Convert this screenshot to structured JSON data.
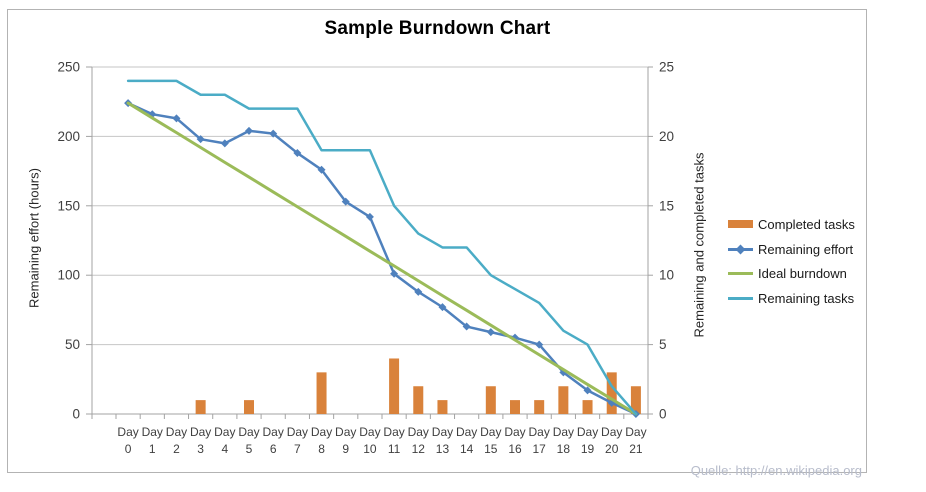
{
  "title": "Sample Burndown Chart",
  "source_note": "Quelle: http://en.wikipedia.org",
  "axes": {
    "left": {
      "title": "Remaining effort (hours)",
      "ticks": [
        0,
        50,
        100,
        150,
        200,
        250
      ]
    },
    "right": {
      "title": "Remaining and completed tasks",
      "ticks": [
        0,
        5,
        10,
        15,
        20,
        25
      ]
    },
    "x": {
      "word": "Day",
      "days": [
        "0",
        "1",
        "2",
        "3",
        "4",
        "5",
        "6",
        "7",
        "8",
        "9",
        "10",
        "11",
        "12",
        "13",
        "14",
        "15",
        "16",
        "17",
        "18",
        "19",
        "20",
        "21"
      ]
    }
  },
  "legend": [
    {
      "label": "Completed tasks",
      "swatch": "bar",
      "color": "#D9823B"
    },
    {
      "label": "Remaining effort",
      "swatch": "line-diamond",
      "color": "#4F81BD"
    },
    {
      "label": "Ideal burndown",
      "swatch": "line",
      "color": "#9BBB59"
    },
    {
      "label": "Remaining tasks",
      "swatch": "line",
      "color": "#4BACC6"
    }
  ],
  "colors": {
    "frame": "#b3b3b3",
    "gridline": "#c6c6c6",
    "axis_line": "#a3a3a3",
    "tick_text": "#3f3f3f",
    "orange": "#D9823B",
    "blue": "#4F81BD",
    "green": "#9BBB59",
    "teal": "#4BACC6",
    "source_note": "#b7bccb"
  },
  "chart_data": {
    "type": "bar",
    "subtype": "combo-bar-and-lines",
    "title": "Sample Burndown Chart",
    "xlabel": "",
    "ylabel_left": "Remaining effort (hours)",
    "ylabel_right": "Remaining and completed tasks",
    "left_ylim": [
      0,
      250
    ],
    "right_ylim": [
      0,
      25
    ],
    "grid": true,
    "legend_position": "right",
    "categories": [
      "Day 0",
      "Day 1",
      "Day 2",
      "Day 3",
      "Day 4",
      "Day 5",
      "Day 6",
      "Day 7",
      "Day 8",
      "Day 9",
      "Day 10",
      "Day 11",
      "Day 12",
      "Day 13",
      "Day 14",
      "Day 15",
      "Day 16",
      "Day 17",
      "Day 18",
      "Day 19",
      "Day 20",
      "Day 21"
    ],
    "series": [
      {
        "name": "Completed tasks",
        "type": "bar",
        "axis": "right",
        "color": "#D9823B",
        "marker": "none",
        "values": [
          0,
          0,
          0,
          1,
          0,
          1,
          0,
          0,
          3,
          0,
          0,
          4,
          2,
          1,
          0,
          2,
          1,
          1,
          2,
          1,
          3,
          2
        ]
      },
      {
        "name": "Remaining effort",
        "type": "line",
        "axis": "left",
        "color": "#4F81BD",
        "marker": "diamond",
        "values": [
          224,
          216,
          213,
          198,
          195,
          204,
          202,
          188,
          176,
          153,
          142,
          101,
          88,
          77,
          63,
          59,
          55,
          50,
          30,
          17,
          8,
          0
        ]
      },
      {
        "name": "Ideal burndown",
        "type": "line",
        "axis": "left",
        "color": "#9BBB59",
        "marker": "none",
        "values": [
          224,
          213.3,
          202.7,
          192,
          181.3,
          170.7,
          160,
          149.3,
          138.7,
          128,
          117.3,
          106.7,
          96,
          85.3,
          74.7,
          64,
          53.3,
          42.7,
          32,
          21.3,
          10.7,
          0
        ]
      },
      {
        "name": "Remaining tasks",
        "type": "line",
        "axis": "right",
        "color": "#4BACC6",
        "marker": "none",
        "values": [
          24,
          24,
          24,
          23,
          23,
          22,
          22,
          22,
          19,
          19,
          19,
          15,
          13,
          12,
          12,
          10,
          9,
          8,
          6,
          5,
          2,
          0
        ]
      }
    ]
  }
}
